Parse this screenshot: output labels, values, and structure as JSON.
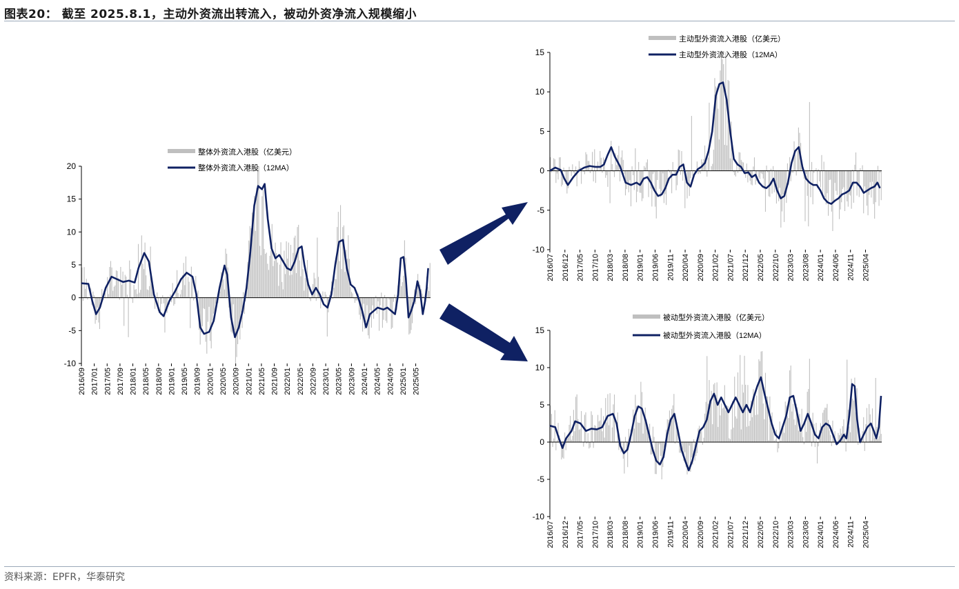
{
  "header": {
    "title": "图表20： 截至 2025.8.1，主动外资流出转流入，被动外资净流入规模缩小"
  },
  "footer": {
    "source": "资料来源：EPFR，华泰研究"
  },
  "colors": {
    "bar": "#bfbfbf",
    "line": "#0f2163",
    "arrow": "#0f2163",
    "axis": "#000000"
  },
  "chart_data": [
    {
      "type": "bar+line",
      "name": "overall",
      "legend": {
        "bar": "整体外资流入港股（亿美元）",
        "line": "整体外资流入港股（12MA）"
      },
      "yticks": [
        20,
        15,
        10,
        5,
        0,
        -5,
        -10
      ],
      "ylim": [
        -10,
        20
      ],
      "xlabels": [
        "2016/09",
        "2017/01",
        "2017/05",
        "2017/09",
        "2018/01",
        "2018/05",
        "2018/09",
        "2019/01",
        "2019/05",
        "2019/09",
        "2020/01",
        "2020/05",
        "2020/09",
        "2021/01",
        "2021/05",
        "2021/09",
        "2022/01",
        "2022/05",
        "2022/09",
        "2023/01",
        "2023/05",
        "2023/09",
        "2024/01",
        "2024/05",
        "2024/09",
        "2025/01",
        "2025/05"
      ],
      "line_points": [
        [
          2016.67,
          2.2
        ],
        [
          2016.85,
          2.1
        ],
        [
          2016.95,
          -0.5
        ],
        [
          2017.05,
          -2.5
        ],
        [
          2017.15,
          -1.5
        ],
        [
          2017.3,
          1.5
        ],
        [
          2017.45,
          3.2
        ],
        [
          2017.6,
          2.8
        ],
        [
          2017.75,
          2.4
        ],
        [
          2017.9,
          2.6
        ],
        [
          2018.05,
          2.3
        ],
        [
          2018.15,
          4.5
        ],
        [
          2018.3,
          6.8
        ],
        [
          2018.42,
          5.5
        ],
        [
          2018.55,
          0.5
        ],
        [
          2018.7,
          -2.2
        ],
        [
          2018.8,
          -2.8
        ],
        [
          2018.95,
          -0.5
        ],
        [
          2019.1,
          1.0
        ],
        [
          2019.25,
          2.8
        ],
        [
          2019.4,
          3.8
        ],
        [
          2019.55,
          3.2
        ],
        [
          2019.65,
          0.5
        ],
        [
          2019.75,
          -4.5
        ],
        [
          2019.85,
          -5.5
        ],
        [
          2019.98,
          -5.2
        ],
        [
          2020.1,
          -3.5
        ],
        [
          2020.25,
          1.5
        ],
        [
          2020.38,
          4.9
        ],
        [
          2020.45,
          3.5
        ],
        [
          2020.55,
          -3.0
        ],
        [
          2020.65,
          -6.0
        ],
        [
          2020.75,
          -4.5
        ],
        [
          2020.85,
          -2.0
        ],
        [
          2020.95,
          1.5
        ],
        [
          2021.05,
          7.0
        ],
        [
          2021.15,
          14.0
        ],
        [
          2021.25,
          17.0
        ],
        [
          2021.35,
          16.5
        ],
        [
          2021.42,
          17.3
        ],
        [
          2021.5,
          12.0
        ],
        [
          2021.6,
          7.5
        ],
        [
          2021.7,
          6.0
        ],
        [
          2021.8,
          6.5
        ],
        [
          2021.9,
          5.5
        ],
        [
          2022.0,
          4.5
        ],
        [
          2022.1,
          4.2
        ],
        [
          2022.2,
          5.5
        ],
        [
          2022.3,
          7.5
        ],
        [
          2022.38,
          7.8
        ],
        [
          2022.45,
          5.0
        ],
        [
          2022.55,
          2.0
        ],
        [
          2022.65,
          0.5
        ],
        [
          2022.75,
          1.5
        ],
        [
          2022.85,
          0.5
        ],
        [
          2022.95,
          -1.0
        ],
        [
          2023.05,
          -1.5
        ],
        [
          2023.15,
          0.5
        ],
        [
          2023.25,
          5.0
        ],
        [
          2023.35,
          8.5
        ],
        [
          2023.45,
          8.8
        ],
        [
          2023.55,
          4.5
        ],
        [
          2023.65,
          2.0
        ],
        [
          2023.75,
          1.5
        ],
        [
          2023.85,
          0.0
        ],
        [
          2023.95,
          -2.0
        ],
        [
          2024.05,
          -4.5
        ],
        [
          2024.15,
          -2.5
        ],
        [
          2024.25,
          -2.0
        ],
        [
          2024.35,
          -1.5
        ],
        [
          2024.5,
          -1.8
        ],
        [
          2024.6,
          -1.5
        ],
        [
          2024.7,
          -2.0
        ],
        [
          2024.8,
          -2.5
        ],
        [
          2024.88,
          0.5
        ],
        [
          2024.95,
          6.0
        ],
        [
          2025.02,
          6.2
        ],
        [
          2025.08,
          3.0
        ],
        [
          2025.15,
          -3.0
        ],
        [
          2025.22,
          -2.0
        ],
        [
          2025.3,
          -0.5
        ],
        [
          2025.38,
          2.5
        ],
        [
          2025.45,
          1.0
        ],
        [
          2025.52,
          -2.5
        ],
        [
          2025.58,
          -0.5
        ],
        [
          2025.62,
          1.5
        ],
        [
          2025.66,
          4.5
        ]
      ]
    },
    {
      "type": "bar+line",
      "name": "active",
      "legend": {
        "bar": "主动型外资流入港股（亿美元）",
        "line": "主动型外资流入港股（12MA）"
      },
      "yticks": [
        15,
        10,
        5,
        0,
        -5,
        -10
      ],
      "ylim": [
        -10,
        15
      ],
      "xlabels": [
        "2016/07",
        "2016/12",
        "2017/05",
        "2017/10",
        "2018/03",
        "2018/08",
        "2019/01",
        "2019/06",
        "2019/11",
        "2020/04",
        "2020/09",
        "2021/02",
        "2021/07",
        "2021/12",
        "2022/05",
        "2022/10",
        "2023/03",
        "2023/08",
        "2024/01",
        "2024/06",
        "2024/11",
        "2025/04"
      ],
      "line_points": [
        [
          2016.5,
          0.0
        ],
        [
          2016.65,
          0.4
        ],
        [
          2016.8,
          0.1
        ],
        [
          2016.9,
          -1.0
        ],
        [
          2017.0,
          -1.8
        ],
        [
          2017.15,
          -0.8
        ],
        [
          2017.3,
          0.0
        ],
        [
          2017.45,
          0.4
        ],
        [
          2017.6,
          0.6
        ],
        [
          2017.75,
          0.5
        ],
        [
          2017.9,
          0.5
        ],
        [
          2018.0,
          0.8
        ],
        [
          2018.1,
          2.0
        ],
        [
          2018.2,
          3.0
        ],
        [
          2018.3,
          1.8
        ],
        [
          2018.45,
          0.5
        ],
        [
          2018.6,
          -1.5
        ],
        [
          2018.75,
          -1.8
        ],
        [
          2018.9,
          -1.5
        ],
        [
          2019.0,
          -1.8
        ],
        [
          2019.1,
          -1.0
        ],
        [
          2019.2,
          -0.8
        ],
        [
          2019.3,
          -1.5
        ],
        [
          2019.4,
          -2.5
        ],
        [
          2019.5,
          -3.2
        ],
        [
          2019.6,
          -3.0
        ],
        [
          2019.7,
          -2.2
        ],
        [
          2019.8,
          -1.0
        ],
        [
          2019.9,
          -0.5
        ],
        [
          2020.0,
          -0.5
        ],
        [
          2020.1,
          0.5
        ],
        [
          2020.2,
          0.8
        ],
        [
          2020.3,
          -1.5
        ],
        [
          2020.4,
          -2.0
        ],
        [
          2020.5,
          -0.5
        ],
        [
          2020.6,
          0.2
        ],
        [
          2020.7,
          0.5
        ],
        [
          2020.8,
          1.0
        ],
        [
          2020.9,
          2.5
        ],
        [
          2021.0,
          5.0
        ],
        [
          2021.1,
          9.5
        ],
        [
          2021.2,
          11.0
        ],
        [
          2021.3,
          11.2
        ],
        [
          2021.4,
          9.0
        ],
        [
          2021.5,
          5.0
        ],
        [
          2021.6,
          1.5
        ],
        [
          2021.7,
          0.8
        ],
        [
          2021.8,
          0.5
        ],
        [
          2021.9,
          -0.3
        ],
        [
          2022.0,
          -0.2
        ],
        [
          2022.1,
          -0.8
        ],
        [
          2022.2,
          -0.5
        ],
        [
          2022.3,
          -1.5
        ],
        [
          2022.4,
          -2.0
        ],
        [
          2022.5,
          -2.2
        ],
        [
          2022.6,
          -1.8
        ],
        [
          2022.7,
          -1.0
        ],
        [
          2022.8,
          -2.5
        ],
        [
          2022.9,
          -3.5
        ],
        [
          2023.0,
          -3.2
        ],
        [
          2023.1,
          -1.5
        ],
        [
          2023.2,
          1.0
        ],
        [
          2023.3,
          2.5
        ],
        [
          2023.4,
          3.0
        ],
        [
          2023.5,
          0.5
        ],
        [
          2023.6,
          -1.0
        ],
        [
          2023.7,
          -1.5
        ],
        [
          2023.8,
          -1.8
        ],
        [
          2023.9,
          -1.8
        ],
        [
          2024.0,
          -2.5
        ],
        [
          2024.1,
          -3.5
        ],
        [
          2024.2,
          -4.0
        ],
        [
          2024.3,
          -4.2
        ],
        [
          2024.4,
          -3.8
        ],
        [
          2024.5,
          -3.5
        ],
        [
          2024.6,
          -3.0
        ],
        [
          2024.7,
          -2.8
        ],
        [
          2024.8,
          -2.5
        ],
        [
          2024.9,
          -1.5
        ],
        [
          2025.0,
          -1.5
        ],
        [
          2025.1,
          -2.0
        ],
        [
          2025.2,
          -2.8
        ],
        [
          2025.3,
          -2.5
        ],
        [
          2025.4,
          -2.2
        ],
        [
          2025.5,
          -2.0
        ],
        [
          2025.58,
          -1.5
        ],
        [
          2025.65,
          -2.2
        ]
      ]
    },
    {
      "type": "bar+line",
      "name": "passive",
      "legend": {
        "bar": "被动型外资流入港股（亿美元）",
        "line": "被动型外资流入港股（12MA）"
      },
      "yticks": [
        15,
        10,
        5,
        0,
        -5,
        -10
      ],
      "ylim": [
        -10,
        15
      ],
      "xlabels": [
        "2016/07",
        "2016/12",
        "2017/05",
        "2017/10",
        "2018/03",
        "2018/08",
        "2019/01",
        "2019/06",
        "2019/11",
        "2020/04",
        "2020/09",
        "2021/02",
        "2021/07",
        "2021/12",
        "2022/05",
        "2022/10",
        "2023/03",
        "2023/08",
        "2024/01",
        "2024/06",
        "2024/11",
        "2025/04"
      ],
      "line_points": [
        [
          2016.5,
          2.2
        ],
        [
          2016.65,
          2.0
        ],
        [
          2016.75,
          0.5
        ],
        [
          2016.85,
          -0.8
        ],
        [
          2016.95,
          0.5
        ],
        [
          2017.1,
          1.5
        ],
        [
          2017.2,
          2.8
        ],
        [
          2017.35,
          2.5
        ],
        [
          2017.5,
          1.5
        ],
        [
          2017.65,
          1.8
        ],
        [
          2017.8,
          1.7
        ],
        [
          2017.95,
          2.0
        ],
        [
          2018.1,
          3.5
        ],
        [
          2018.25,
          3.8
        ],
        [
          2018.35,
          2.5
        ],
        [
          2018.45,
          -0.5
        ],
        [
          2018.55,
          -1.5
        ],
        [
          2018.65,
          -1.0
        ],
        [
          2018.75,
          1.0
        ],
        [
          2018.85,
          3.5
        ],
        [
          2018.95,
          4.8
        ],
        [
          2019.05,
          4.5
        ],
        [
          2019.15,
          3.0
        ],
        [
          2019.25,
          1.0
        ],
        [
          2019.35,
          -1.0
        ],
        [
          2019.45,
          -2.5
        ],
        [
          2019.55,
          -3.0
        ],
        [
          2019.65,
          -2.0
        ],
        [
          2019.75,
          1.0
        ],
        [
          2019.85,
          3.0
        ],
        [
          2019.95,
          3.8
        ],
        [
          2020.05,
          1.5
        ],
        [
          2020.15,
          -1.0
        ],
        [
          2020.25,
          -2.5
        ],
        [
          2020.35,
          -3.8
        ],
        [
          2020.45,
          -2.5
        ],
        [
          2020.55,
          -0.5
        ],
        [
          2020.65,
          1.5
        ],
        [
          2020.75,
          2.0
        ],
        [
          2020.85,
          3.0
        ],
        [
          2020.95,
          5.5
        ],
        [
          2021.05,
          6.5
        ],
        [
          2021.15,
          5.0
        ],
        [
          2021.25,
          6.0
        ],
        [
          2021.35,
          5.0
        ],
        [
          2021.45,
          4.0
        ],
        [
          2021.55,
          5.0
        ],
        [
          2021.65,
          6.0
        ],
        [
          2021.75,
          5.0
        ],
        [
          2021.85,
          4.0
        ],
        [
          2021.95,
          5.0
        ],
        [
          2022.05,
          4.0
        ],
        [
          2022.15,
          6.0
        ],
        [
          2022.25,
          7.5
        ],
        [
          2022.35,
          8.7
        ],
        [
          2022.45,
          6.5
        ],
        [
          2022.55,
          4.5
        ],
        [
          2022.65,
          2.5
        ],
        [
          2022.75,
          1.0
        ],
        [
          2022.85,
          0.5
        ],
        [
          2022.95,
          2.0
        ],
        [
          2023.05,
          3.5
        ],
        [
          2023.15,
          6.0
        ],
        [
          2023.25,
          6.2
        ],
        [
          2023.35,
          4.0
        ],
        [
          2023.45,
          1.5
        ],
        [
          2023.55,
          2.5
        ],
        [
          2023.65,
          3.8
        ],
        [
          2023.75,
          2.5
        ],
        [
          2023.85,
          1.0
        ],
        [
          2023.95,
          0.5
        ],
        [
          2024.05,
          2.0
        ],
        [
          2024.15,
          2.5
        ],
        [
          2024.25,
          2.2
        ],
        [
          2024.35,
          1.0
        ],
        [
          2024.45,
          -0.3
        ],
        [
          2024.55,
          0.2
        ],
        [
          2024.65,
          1.0
        ],
        [
          2024.72,
          0.5
        ],
        [
          2024.8,
          3.5
        ],
        [
          2024.88,
          7.8
        ],
        [
          2024.95,
          7.5
        ],
        [
          2025.02,
          3.0
        ],
        [
          2025.1,
          0.0
        ],
        [
          2025.2,
          1.0
        ],
        [
          2025.3,
          2.0
        ],
        [
          2025.4,
          2.5
        ],
        [
          2025.48,
          1.5
        ],
        [
          2025.55,
          0.5
        ],
        [
          2025.62,
          2.0
        ],
        [
          2025.68,
          6.2
        ]
      ]
    }
  ]
}
